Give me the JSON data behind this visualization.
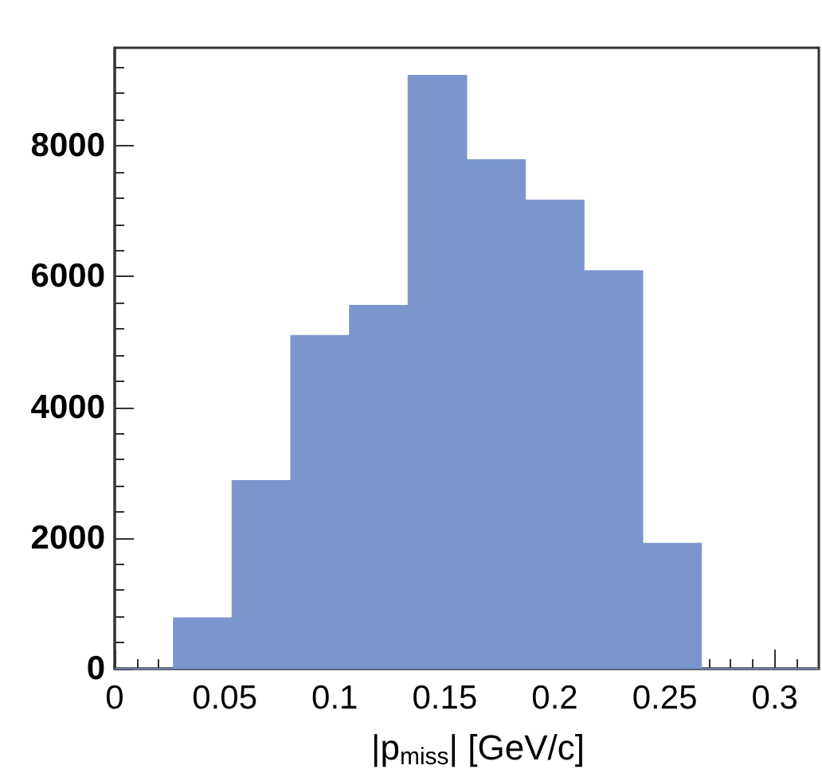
{
  "chart_data": {
    "type": "histogram",
    "xlabel": "|p$_{miss}$| [GeV/c]",
    "bins": [
      0,
      0.0267,
      0.0533,
      0.08,
      0.1067,
      0.1333,
      0.16,
      0.1867,
      0.2133,
      0.24,
      0.2667,
      0.2933,
      0.32
    ],
    "values": [
      0,
      780,
      2880,
      5100,
      5560,
      9080,
      7790,
      7170,
      6090,
      1920,
      0,
      0
    ],
    "color": "#7b96cd",
    "xlim": [
      0,
      0.32
    ],
    "xticks": [
      0,
      0.05,
      0.1,
      0.15,
      0.2,
      0.25,
      0.3
    ],
    "ylim": [
      0,
      9500
    ],
    "yticks": [
      0,
      2000,
      4000,
      6000,
      8000
    ],
    "grid": false
  }
}
